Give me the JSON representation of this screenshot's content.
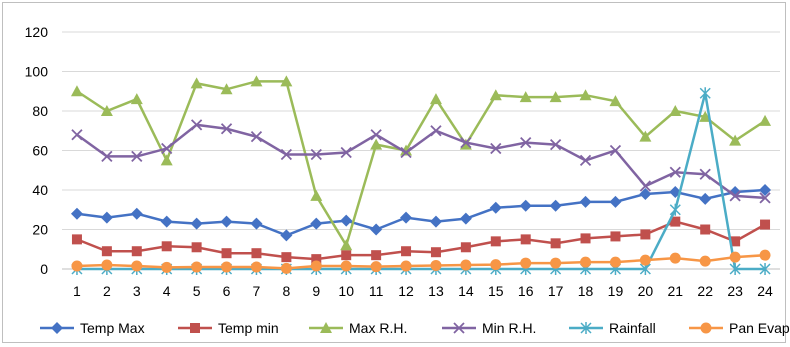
{
  "chart_data": {
    "type": "line",
    "title": "",
    "xlabel": "",
    "ylabel": "",
    "ylim": [
      0,
      120
    ],
    "yticks": [
      0,
      20,
      40,
      60,
      80,
      100,
      120
    ],
    "grid": true,
    "legend_position": "bottom",
    "categories": [
      "1",
      "2",
      "3",
      "4",
      "5",
      "6",
      "7",
      "8",
      "9",
      "10",
      "11",
      "12",
      "13",
      "14",
      "15",
      "16",
      "17",
      "18",
      "19",
      "20",
      "21",
      "22",
      "23",
      "24"
    ],
    "series": [
      {
        "name": "Temp Max",
        "color": "#4472c4",
        "marker": "diamond",
        "values": [
          28,
          26,
          28,
          24,
          23,
          24,
          23,
          17,
          23,
          24.5,
          20,
          26,
          24,
          25.5,
          31,
          32,
          32,
          34,
          34,
          38,
          39,
          35.5,
          39,
          40
        ]
      },
      {
        "name": "Temp min",
        "color": "#c0504d",
        "marker": "square",
        "values": [
          15,
          9,
          9,
          11.5,
          11,
          8,
          8,
          6,
          5,
          7,
          7,
          9,
          8.5,
          11,
          14,
          15,
          13,
          15.5,
          16.5,
          17.5,
          24,
          20,
          14,
          22.5
        ]
      },
      {
        "name": "Max R.H.",
        "color": "#9bbb59",
        "marker": "triangle",
        "values": [
          90,
          80,
          86,
          55,
          94,
          91,
          95,
          95,
          37,
          12,
          63,
          60,
          86,
          63,
          88,
          87,
          87,
          88,
          85,
          67,
          80,
          77,
          65,
          75
        ]
      },
      {
        "name": "Min R.H.",
        "color": "#8064a2",
        "marker": "x",
        "values": [
          68,
          57,
          57,
          61,
          73,
          71,
          67,
          58,
          58,
          59,
          68,
          59,
          70,
          64,
          61,
          64,
          63,
          55,
          60,
          42,
          49,
          48,
          37,
          36
        ]
      },
      {
        "name": "Rainfall",
        "color": "#4bacc6",
        "marker": "star",
        "values": [
          0,
          0,
          0,
          0,
          0,
          0,
          0,
          0,
          0,
          0,
          0,
          0,
          0,
          0,
          0,
          0,
          0,
          0,
          0,
          0,
          30,
          89,
          0,
          0
        ]
      },
      {
        "name": "Pan Evap. (mm",
        "color": "#f79646",
        "marker": "circle",
        "values": [
          1.5,
          2,
          1.5,
          0.8,
          1,
          1,
          1,
          0.3,
          1.5,
          1.5,
          1.2,
          1.5,
          1.8,
          2,
          2.2,
          3,
          3,
          3.5,
          3.5,
          4.5,
          5.5,
          4,
          6,
          7
        ]
      }
    ]
  }
}
